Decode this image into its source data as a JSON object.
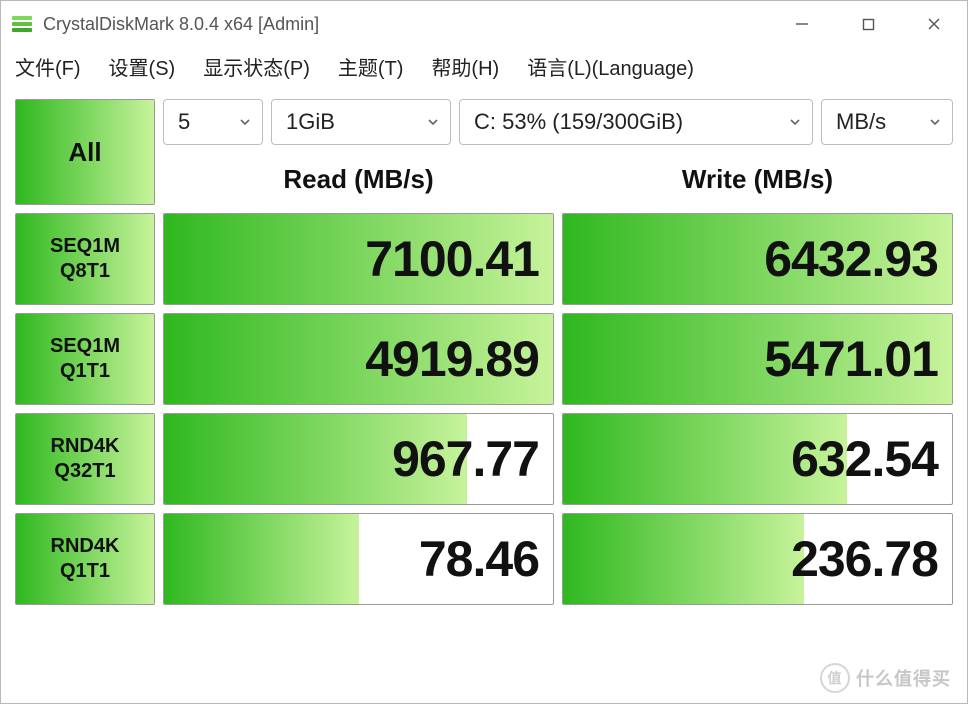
{
  "window": {
    "title": "CrystalDiskMark 8.0.4 x64 [Admin]"
  },
  "menu": {
    "file": "文件(F)",
    "settings": "设置(S)",
    "show": "显示状态(P)",
    "theme": "主题(T)",
    "help": "帮助(H)",
    "language": "语言(L)(Language)"
  },
  "controls": {
    "all": "All",
    "runs": "5",
    "size": "1GiB",
    "drive": "C: 53% (159/300GiB)",
    "unit": "MB/s"
  },
  "headers": {
    "read": "Read (MB/s)",
    "write": "Write (MB/s)"
  },
  "colors": {
    "grad_start": "#2fb81f",
    "grad_end": "#c7f39b",
    "border": "#9a9a9a",
    "max_value_ref": 8000
  },
  "tests": [
    {
      "label1": "SEQ1M",
      "label2": "Q8T1",
      "read": "7100.41",
      "write": "6432.93",
      "read_pct": 100,
      "write_pct": 100
    },
    {
      "label1": "SEQ1M",
      "label2": "Q1T1",
      "read": "4919.89",
      "write": "5471.01",
      "read_pct": 100,
      "write_pct": 100
    },
    {
      "label1": "RND4K",
      "label2": "Q32T1",
      "read": "967.77",
      "write": "632.54",
      "read_pct": 78,
      "write_pct": 73
    },
    {
      "label1": "RND4K",
      "label2": "Q1T1",
      "read": "78.46",
      "write": "236.78",
      "read_pct": 50,
      "write_pct": 62
    }
  ],
  "watermark": {
    "badge": "值",
    "text": "什么值得买"
  }
}
